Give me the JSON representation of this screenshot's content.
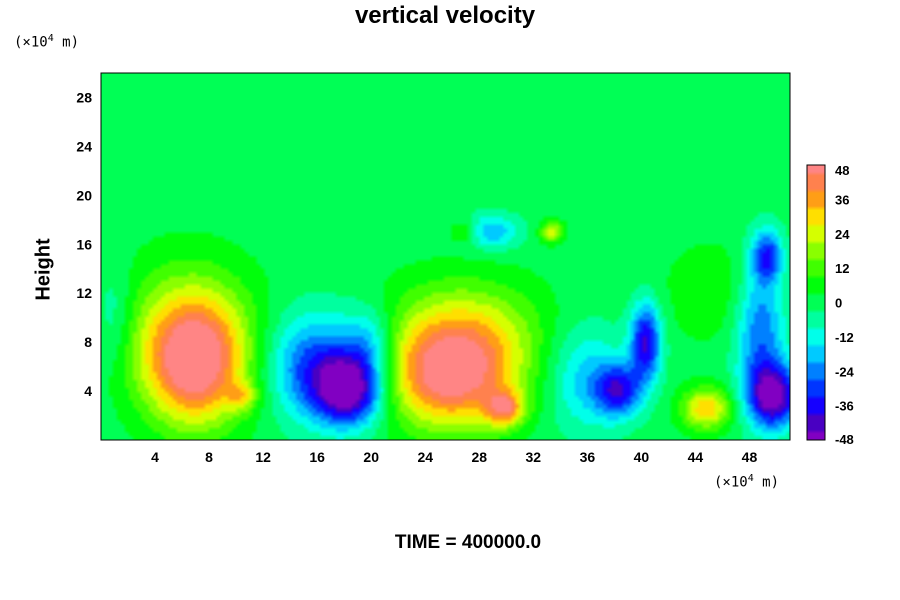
{
  "chart_data": {
    "type": "heatmap",
    "title": "vertical velocity",
    "ylabel": "Height",
    "y_unit": "(×10",
    "x_unit": "(×10",
    "unit_exp": "4",
    "unit_suffix": " m)",
    "xlim": [
      0,
      51
    ],
    "ylim": [
      0,
      30
    ],
    "x_ticks": [
      "4",
      "8",
      "12",
      "16",
      "20",
      "24",
      "28",
      "32",
      "36",
      "40",
      "44",
      "48"
    ],
    "y_ticks": [
      "4",
      "8",
      "12",
      "16",
      "20",
      "24",
      "28"
    ],
    "colorbar_ticks": [
      "48",
      "36",
      "24",
      "12",
      "0",
      "-12",
      "-24",
      "-36",
      "-48"
    ],
    "colorbar_range": [
      -48,
      48
    ],
    "features": [
      {
        "x": 7,
        "y": 6,
        "value": 44,
        "sx": 2.6,
        "sy": 3.5
      },
      {
        "x": 6.5,
        "y": 9,
        "value": 20,
        "sx": 3.5,
        "sy": 4
      },
      {
        "x": 18.5,
        "y": 4,
        "value": -48,
        "sx": 1.8,
        "sy": 2
      },
      {
        "x": 16,
        "y": 6,
        "value": -30,
        "sx": 2.5,
        "sy": 3
      },
      {
        "x": 20,
        "y": 8,
        "value": -18,
        "sx": 1.3,
        "sy": 2
      },
      {
        "x": 26,
        "y": 5,
        "value": 46,
        "sx": 3.5,
        "sy": 3
      },
      {
        "x": 27,
        "y": 9,
        "value": 22,
        "sx": 4,
        "sy": 3
      },
      {
        "x": 30,
        "y": 2.5,
        "value": 32,
        "sx": 1,
        "sy": 1
      },
      {
        "x": 38.5,
        "y": 4,
        "value": -34,
        "sx": 1.2,
        "sy": 1.5
      },
      {
        "x": 40.5,
        "y": 8,
        "value": -40,
        "sx": 0.8,
        "sy": 2.2
      },
      {
        "x": 36,
        "y": 5,
        "value": -18,
        "sx": 2,
        "sy": 3
      },
      {
        "x": 45,
        "y": 2.5,
        "value": 32,
        "sx": 1.3,
        "sy": 1.2
      },
      {
        "x": 50,
        "y": 3.5,
        "value": -48,
        "sx": 1.3,
        "sy": 1.8
      },
      {
        "x": 49,
        "y": 9,
        "value": -28,
        "sx": 1.3,
        "sy": 4
      },
      {
        "x": 49.5,
        "y": 15,
        "value": -30,
        "sx": 0.8,
        "sy": 1.5
      },
      {
        "x": 29,
        "y": 17,
        "value": -20,
        "sx": 1.5,
        "sy": 1
      },
      {
        "x": 33.5,
        "y": 17,
        "value": 26,
        "sx": 0.6,
        "sy": 0.6
      },
      {
        "x": 27,
        "y": 17,
        "value": 14,
        "sx": 0.7,
        "sy": 0.7
      },
      {
        "x": 10.5,
        "y": 3.5,
        "value": 18,
        "sx": 0.8,
        "sy": 0.8
      },
      {
        "x": 1,
        "y": 10,
        "value": -10,
        "sx": 1,
        "sy": 3
      },
      {
        "x": 46,
        "y": 12,
        "value": 8,
        "sx": 3,
        "sy": 3
      }
    ]
  },
  "footer": {
    "time_label": "TIME = 400000.0"
  }
}
